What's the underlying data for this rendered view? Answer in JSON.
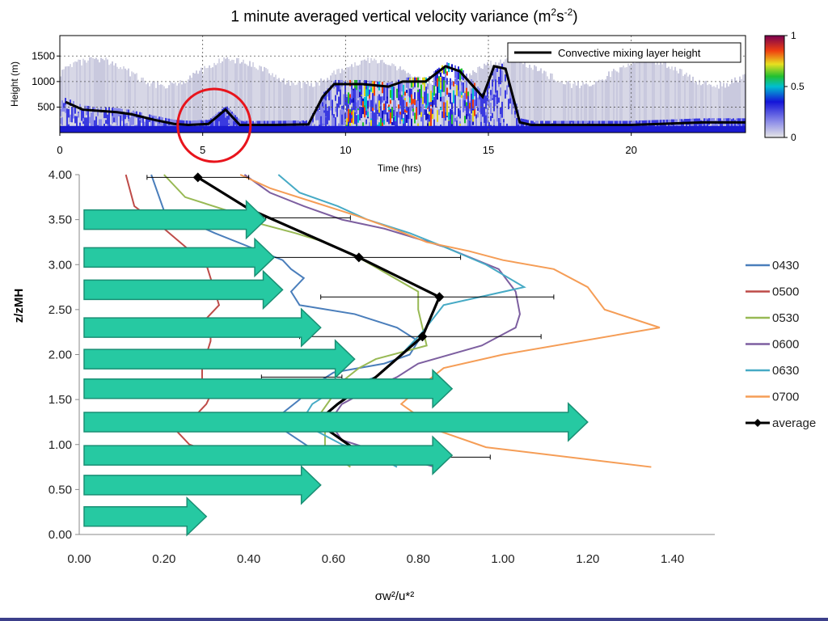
{
  "chart_data": [
    {
      "type": "heatmap",
      "title": "1 minute averaged vertical velocity variance (m2s-2)",
      "title_main": "1 minute averaged vertical velocity variance (m",
      "title_sup1": "2",
      "title_mid": "s",
      "title_sup2": "-2",
      "title_end": ")",
      "xlabel": "Time (hrs)",
      "ylabel": "Height (m)",
      "xlim": [
        0,
        24
      ],
      "ylim": [
        0,
        1900
      ],
      "xticks": [
        "0",
        "5",
        "10",
        "15",
        "20"
      ],
      "yticks": [
        "500",
        "1000",
        "1500"
      ],
      "colorbar": {
        "ticks": [
          "0",
          "0.5",
          "1"
        ],
        "range": [
          0,
          1
        ]
      },
      "legend": "Convective mixing layer height",
      "grid": true,
      "mixing_layer_height": {
        "name": "Convective mixing layer height",
        "x": [
          0.2,
          0.8,
          2.0,
          2.5,
          3.3,
          4.0,
          4.5,
          5.2,
          5.8,
          6.3,
          7.5,
          8.7,
          9.2,
          9.6,
          10.6,
          11.5,
          12.0,
          12.8,
          13.5,
          14.0,
          14.8,
          15.2,
          15.6,
          16.1,
          16.5,
          17.0,
          19.0,
          20.0,
          22.5,
          24.0
        ],
        "y": [
          600,
          450,
          400,
          360,
          250,
          170,
          150,
          170,
          450,
          150,
          150,
          160,
          700,
          950,
          950,
          900,
          1000,
          1000,
          1300,
          1200,
          700,
          1300,
          1250,
          200,
          150,
          150,
          150,
          150,
          200,
          200
        ]
      },
      "annotation": "red circle near 5.5 hrs"
    },
    {
      "type": "line",
      "xlabel": "σw²/u*²",
      "ylabel": "z/zMH",
      "xlim": [
        0,
        1.5
      ],
      "ylim": [
        0,
        4
      ],
      "xticks": [
        "0.00",
        "0.20",
        "0.40",
        "0.60",
        "0.80",
        "1.00",
        "1.20",
        "1.40"
      ],
      "yticks": [
        "0.00",
        "0.50",
        "1.00",
        "1.50",
        "2.00",
        "2.50",
        "3.00",
        "3.50",
        "4.00"
      ],
      "legend_position": "right",
      "series": [
        {
          "name": "0430",
          "color": "#4a7ebb",
          "x": [
            0.17,
            0.2,
            0.32,
            0.4,
            0.48,
            0.5,
            0.53,
            0.5,
            0.52,
            0.65,
            0.75,
            0.8,
            0.78,
            0.72,
            0.6,
            0.55,
            0.52,
            0.48,
            0.47,
            0.55,
            0.74
          ],
          "y": [
            4.0,
            3.6,
            3.35,
            3.2,
            3.05,
            2.95,
            2.85,
            2.7,
            2.55,
            2.45,
            2.3,
            2.15,
            2.0,
            1.9,
            1.8,
            1.65,
            1.5,
            1.35,
            1.2,
            0.95,
            0.78
          ]
        },
        {
          "name": "0500",
          "color": "#be4b48",
          "x": [
            0.11,
            0.13,
            0.2,
            0.3,
            0.31,
            0.32,
            0.33,
            0.3,
            0.31,
            0.31,
            0.3,
            0.29,
            0.29,
            0.31,
            0.3,
            0.27,
            0.23,
            0.26,
            0.32,
            0.42
          ],
          "y": [
            4.0,
            3.65,
            3.4,
            3.0,
            2.85,
            2.7,
            2.55,
            2.4,
            2.3,
            2.15,
            2.0,
            1.85,
            1.7,
            1.55,
            1.45,
            1.3,
            1.15,
            1.0,
            0.9,
            0.78
          ]
        },
        {
          "name": "0530",
          "color": "#98b954",
          "x": [
            0.2,
            0.25,
            0.35,
            0.43,
            0.51,
            0.58,
            0.67,
            0.8,
            0.8,
            0.81,
            0.82,
            0.7,
            0.66,
            0.62,
            0.6,
            0.57,
            0.58,
            0.58,
            0.64
          ],
          "y": [
            4.0,
            3.75,
            3.6,
            3.45,
            3.35,
            3.25,
            3.05,
            2.7,
            2.5,
            2.3,
            2.1,
            1.95,
            1.85,
            1.7,
            1.55,
            1.35,
            1.15,
            0.95,
            0.75
          ]
        },
        {
          "name": "0600",
          "color": "#7d5fa0",
          "x": [
            0.39,
            0.45,
            0.53,
            0.62,
            0.72,
            0.86,
            0.99,
            1.03,
            1.04,
            1.03,
            0.95,
            0.8,
            0.75,
            0.68,
            0.62,
            0.59,
            0.62,
            0.72,
            0.84
          ],
          "y": [
            4.0,
            3.8,
            3.65,
            3.5,
            3.4,
            3.2,
            2.95,
            2.7,
            2.45,
            2.3,
            2.1,
            1.9,
            1.75,
            1.6,
            1.45,
            1.25,
            1.05,
            0.9,
            0.75
          ]
        },
        {
          "name": "0630",
          "color": "#46aac5",
          "x": [
            0.47,
            0.52,
            0.61,
            0.68,
            0.78,
            0.86,
            0.96,
            1.05,
            0.86,
            0.81,
            0.76,
            0.7,
            0.6,
            0.55,
            0.53,
            0.56,
            0.62,
            0.7,
            0.75
          ],
          "y": [
            4.0,
            3.8,
            3.65,
            3.5,
            3.35,
            3.2,
            3.0,
            2.75,
            2.55,
            2.25,
            2.0,
            1.75,
            1.6,
            1.45,
            1.3,
            1.15,
            1.0,
            0.88,
            0.75
          ]
        },
        {
          "name": "0700",
          "color": "#f59d56",
          "x": [
            0.38,
            0.45,
            0.55,
            0.65,
            0.74,
            0.82,
            0.92,
            1.0,
            1.12,
            1.2,
            1.24,
            1.37,
            1.0,
            0.86,
            0.82,
            0.76,
            0.85,
            0.96,
            1.35
          ],
          "y": [
            4.0,
            3.85,
            3.7,
            3.55,
            3.4,
            3.25,
            3.15,
            3.05,
            2.95,
            2.75,
            2.5,
            2.3,
            2.0,
            1.85,
            1.7,
            1.45,
            1.15,
            0.97,
            0.75
          ]
        },
        {
          "name": "average",
          "color": "#000000",
          "x": [
            0.28,
            0.4,
            0.53,
            0.66,
            0.85,
            0.81,
            0.7,
            0.61,
            0.56,
            0.65
          ],
          "y": [
            3.97,
            3.62,
            3.35,
            3.08,
            2.64,
            2.2,
            1.75,
            1.45,
            1.25,
            0.95
          ],
          "markers": [
            [
              0.28,
              3.97
            ],
            [
              0.66,
              3.08
            ],
            [
              0.85,
              2.64
            ],
            [
              0.81,
              2.2
            ]
          ]
        }
      ],
      "error_bars": [
        {
          "y": 3.97,
          "low": 0.16,
          "high": 0.4
        },
        {
          "y": 3.52,
          "low": 0.44,
          "high": 0.64
        },
        {
          "y": 3.08,
          "low": 0.45,
          "high": 0.9
        },
        {
          "y": 2.64,
          "low": 0.57,
          "high": 1.12
        },
        {
          "y": 2.2,
          "low": 0.52,
          "high": 1.09
        },
        {
          "y": 1.75,
          "low": 0.43,
          "high": 0.62
        },
        {
          "y": 0.86,
          "low": 0.77,
          "high": 0.97
        }
      ],
      "flow_arrows": [
        {
          "y": 3.5,
          "x_end": 0.44
        },
        {
          "y": 3.08,
          "x_end": 0.46
        },
        {
          "y": 2.72,
          "x_end": 0.48
        },
        {
          "y": 2.3,
          "x_end": 0.57
        },
        {
          "y": 1.95,
          "x_end": 0.65
        },
        {
          "y": 1.62,
          "x_end": 0.88
        },
        {
          "y": 1.25,
          "x_end": 1.2
        },
        {
          "y": 0.88,
          "x_end": 0.88
        },
        {
          "y": 0.55,
          "x_end": 0.57
        },
        {
          "y": 0.2,
          "x_end": 0.3
        }
      ]
    }
  ],
  "ui": {
    "arrow_fill": "#26c9a2",
    "arrow_stroke": "#1a8f74",
    "circle_color": "#e8141c"
  }
}
